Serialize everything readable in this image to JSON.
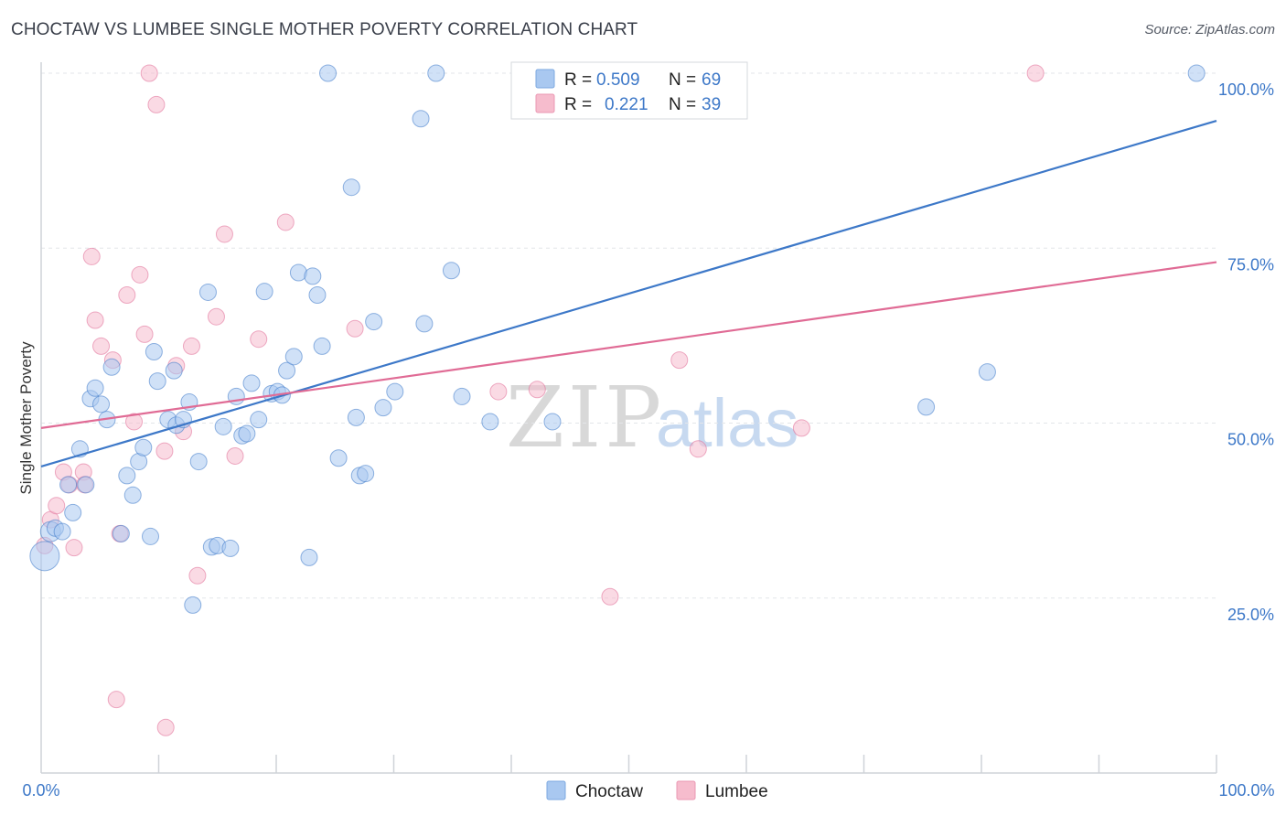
{
  "header": {
    "title": "CHOCTAW VS LUMBEE SINGLE MOTHER POVERTY CORRELATION CHART",
    "source": "Source: ZipAtlas.com"
  },
  "watermark": {
    "zip": "ZIP",
    "atlas": "atlas"
  },
  "legend": {
    "rows": [
      {
        "r_label": "R = ",
        "r_value": "0.509",
        "n_label": "N = ",
        "n_value": "69",
        "color": "#a9c8f0"
      },
      {
        "r_label": "R = ",
        "r_value": "0.221",
        "n_label": "N = ",
        "n_value": "39",
        "color": "#f6bccd"
      }
    ]
  },
  "chart_data": {
    "type": "scatter",
    "title": "CHOCTAW VS LUMBEE SINGLE MOTHER POVERTY CORRELATION CHART",
    "xlabel": "",
    "ylabel": "Single Mother Poverty",
    "xlim": [
      0,
      100
    ],
    "ylim": [
      0,
      100
    ],
    "x_tick_labels": [
      "0.0%",
      "100.0%"
    ],
    "y_tick_labels": [
      "25.0%",
      "50.0%",
      "75.0%",
      "100.0%"
    ],
    "y_ticks": [
      25,
      50,
      75,
      100
    ],
    "grid": true,
    "legend_position": "top-center",
    "series": [
      {
        "name": "Choctaw",
        "color": "#3d78c8",
        "fill": "#a9c8f0",
        "trend": {
          "x": [
            0,
            100
          ],
          "y": [
            43.8,
            93.2
          ]
        },
        "points": [
          [
            0.3,
            31,
            28
          ],
          [
            0.8,
            34.5,
            18
          ],
          [
            1.2,
            35,
            14
          ],
          [
            1.8,
            34.5,
            14
          ],
          [
            2.3,
            41.2,
            14
          ],
          [
            2.7,
            37.2,
            14
          ],
          [
            3.3,
            46.3,
            14
          ],
          [
            3.8,
            41.2,
            14
          ],
          [
            4.2,
            53.5,
            14
          ],
          [
            4.6,
            55,
            14
          ],
          [
            5.1,
            52.7,
            14
          ],
          [
            5.6,
            50.5,
            14
          ],
          [
            6.0,
            58,
            14
          ],
          [
            6.8,
            34.2,
            14
          ],
          [
            7.3,
            42.5,
            14
          ],
          [
            7.8,
            39.7,
            14
          ],
          [
            8.3,
            44.5,
            14
          ],
          [
            8.7,
            46.5,
            14
          ],
          [
            9.3,
            33.8,
            14
          ],
          [
            9.6,
            60.2,
            14
          ],
          [
            9.9,
            56,
            14
          ],
          [
            10.8,
            50.5,
            14
          ],
          [
            11.3,
            57.5,
            14
          ],
          [
            11.5,
            49.7,
            14
          ],
          [
            12.1,
            50.5,
            14
          ],
          [
            12.6,
            53,
            14
          ],
          [
            12.9,
            24,
            14
          ],
          [
            13.4,
            44.5,
            14
          ],
          [
            14.2,
            68.7,
            14
          ],
          [
            14.5,
            32.3,
            14
          ],
          [
            15.0,
            32.5,
            14
          ],
          [
            15.5,
            49.5,
            14
          ],
          [
            16.1,
            32.1,
            14
          ],
          [
            16.6,
            53.8,
            14
          ],
          [
            17.1,
            48.2,
            14
          ],
          [
            17.5,
            48.5,
            14
          ],
          [
            17.9,
            55.7,
            14
          ],
          [
            18.5,
            50.5,
            14
          ],
          [
            19.0,
            68.8,
            14
          ],
          [
            19.6,
            54.2,
            14
          ],
          [
            20.1,
            54.5,
            14
          ],
          [
            20.5,
            54,
            14
          ],
          [
            20.9,
            57.5,
            14
          ],
          [
            21.5,
            59.5,
            14
          ],
          [
            21.9,
            71.5,
            14
          ],
          [
            22.8,
            30.8,
            14
          ],
          [
            23.1,
            71,
            14
          ],
          [
            23.5,
            68.3,
            14
          ],
          [
            23.9,
            61,
            14
          ],
          [
            24.4,
            100,
            14
          ],
          [
            25.3,
            45,
            14
          ],
          [
            26.4,
            83.7,
            14
          ],
          [
            26.8,
            50.8,
            14
          ],
          [
            27.1,
            42.5,
            14
          ],
          [
            27.6,
            42.8,
            14
          ],
          [
            28.3,
            64.5,
            14
          ],
          [
            29.1,
            52.2,
            14
          ],
          [
            30.1,
            54.5,
            14
          ],
          [
            32.3,
            93.5,
            14
          ],
          [
            32.6,
            64.2,
            14
          ],
          [
            33.6,
            100,
            14
          ],
          [
            34.9,
            71.8,
            14
          ],
          [
            35.8,
            53.8,
            14
          ],
          [
            38.2,
            50.2,
            14
          ],
          [
            43.5,
            50.2,
            14
          ],
          [
            45.3,
            100,
            14
          ],
          [
            75.3,
            52.3,
            14
          ],
          [
            80.5,
            57.3,
            14
          ],
          [
            98.3,
            100,
            14
          ]
        ]
      },
      {
        "name": "Lumbee",
        "color": "#e06b95",
        "fill": "#f6bccd",
        "trend": {
          "x": [
            0,
            100
          ],
          "y": [
            49.3,
            73.0
          ]
        },
        "points": [
          [
            0.3,
            32.5,
            14
          ],
          [
            0.8,
            36.2,
            14
          ],
          [
            1.3,
            38.2,
            14
          ],
          [
            1.9,
            43,
            14
          ],
          [
            2.4,
            41.2,
            14
          ],
          [
            2.8,
            32.2,
            14
          ],
          [
            3.6,
            43,
            14
          ],
          [
            3.7,
            41.2,
            14
          ],
          [
            4.3,
            73.8,
            14
          ],
          [
            4.6,
            64.7,
            14
          ],
          [
            5.1,
            61,
            14
          ],
          [
            6.1,
            59,
            14
          ],
          [
            6.4,
            10.5,
            14
          ],
          [
            6.7,
            34.2,
            14
          ],
          [
            7.3,
            68.3,
            14
          ],
          [
            7.9,
            50.2,
            14
          ],
          [
            8.4,
            71.2,
            14
          ],
          [
            8.8,
            62.7,
            14
          ],
          [
            9.2,
            100,
            14
          ],
          [
            9.8,
            95.5,
            14
          ],
          [
            10.5,
            46,
            14
          ],
          [
            10.6,
            6.5,
            14
          ],
          [
            11.5,
            58.2,
            14
          ],
          [
            12.1,
            48.8,
            14
          ],
          [
            12.8,
            61,
            14
          ],
          [
            13.3,
            28.2,
            14
          ],
          [
            14.9,
            65.2,
            14
          ],
          [
            15.6,
            77,
            14
          ],
          [
            16.5,
            45.3,
            14
          ],
          [
            18.5,
            62,
            14
          ],
          [
            20.8,
            78.7,
            14
          ],
          [
            26.7,
            63.5,
            14
          ],
          [
            38.9,
            54.5,
            14
          ],
          [
            42.2,
            54.8,
            14
          ],
          [
            48.4,
            25.2,
            14
          ],
          [
            54.3,
            59,
            14
          ],
          [
            55.9,
            46.3,
            14
          ],
          [
            64.7,
            49.3,
            14
          ],
          [
            84.6,
            100,
            14
          ]
        ]
      }
    ]
  },
  "bottom_legend": {
    "items": [
      "Choctaw",
      "Lumbee"
    ]
  }
}
